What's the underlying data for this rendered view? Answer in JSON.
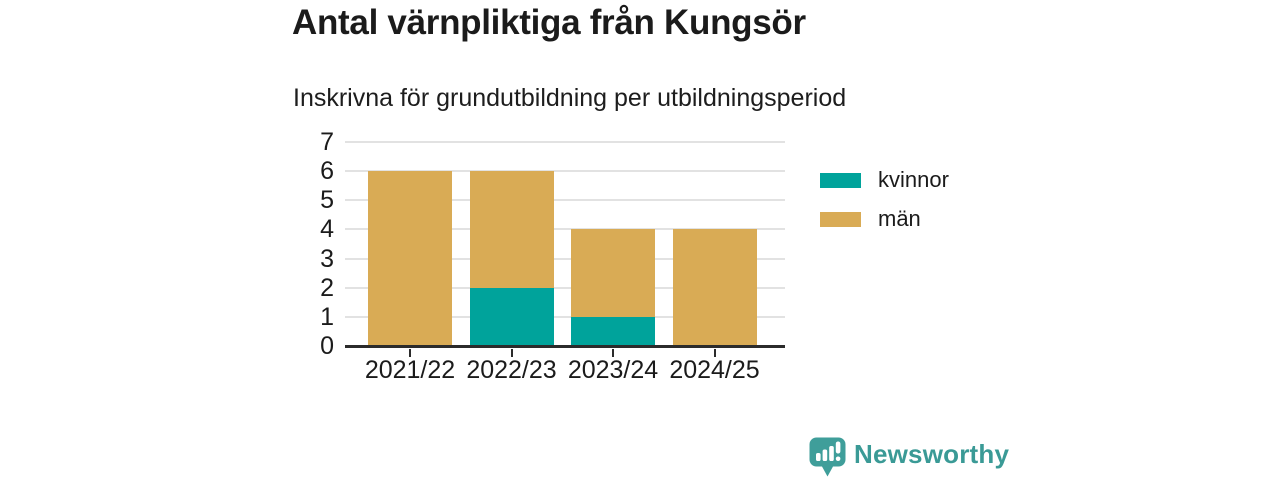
{
  "header": {
    "title": "Antal värnpliktiga från Kungsör",
    "subtitle": "Inskrivna för grundutbildning per utbildningsperiod"
  },
  "chart_data": {
    "type": "bar",
    "stacked": true,
    "title": "Antal värnpliktiga från Kungsör",
    "subtitle": "Inskrivna för grundutbildning per utbildningsperiod",
    "categories": [
      "2021/22",
      "2022/23",
      "2023/24",
      "2024/25"
    ],
    "series": [
      {
        "name": "kvinnor",
        "color": "#00a39b",
        "values": [
          0,
          2,
          1,
          0
        ]
      },
      {
        "name": "män",
        "color": "#d9ab55",
        "values": [
          6,
          4,
          3,
          4
        ]
      }
    ],
    "totals": [
      6,
      6,
      4,
      4
    ],
    "xlabel": "",
    "ylabel": "",
    "ylim": [
      0,
      7
    ],
    "yticks": [
      0,
      1,
      2,
      3,
      4,
      5,
      6,
      7
    ],
    "grid": true,
    "legend_position": "right"
  },
  "legend": {
    "items": [
      {
        "label": "kvinnor",
        "color": "#00a39b"
      },
      {
        "label": "män",
        "color": "#d9ab55"
      }
    ]
  },
  "footer": {
    "brand": "Newsworthy",
    "brand_color": "#3a9a96",
    "logo_icon": "newsworthy-speech-bubble-bars-icon"
  },
  "colors": {
    "axis": "#2b2b2b",
    "grid": "#e2e2e2",
    "text": "#1b1b1b"
  }
}
